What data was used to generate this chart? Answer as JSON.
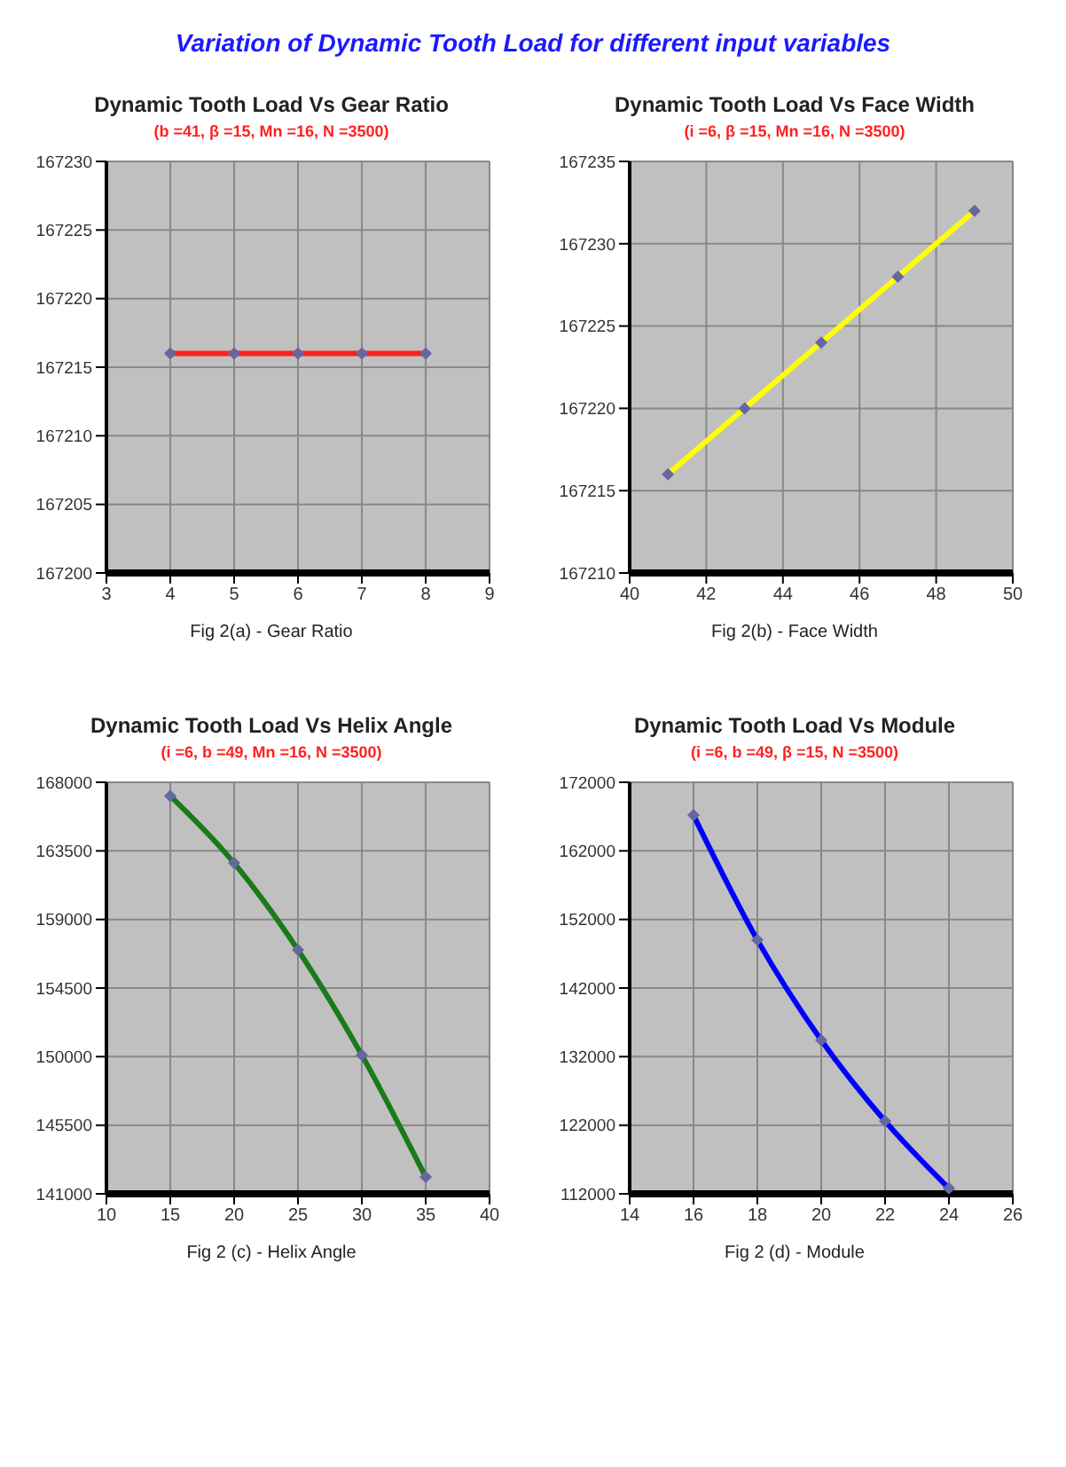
{
  "chart_data": [
    {
      "type": "other",
      "title": "Variation of Dynamic Tooth Load for different input variables"
    },
    {
      "type": "line",
      "title": "Dynamic Tooth Load Vs Gear Ratio",
      "subtitle": "(b =41, β =15, Mn =16, N =3500)",
      "xlabel": "Fig 2(a) - Gear Ratio",
      "x": [
        4,
        5,
        6,
        7,
        8
      ],
      "series": [
        {
          "color": "#ff2020",
          "values": [
            167216,
            167216,
            167216,
            167216,
            167216
          ]
        }
      ],
      "xlim": [
        3,
        9
      ],
      "xticks": [
        3,
        4,
        5,
        6,
        7,
        8,
        9
      ],
      "ylim": [
        167200,
        167230
      ],
      "yticks": [
        167200,
        167205,
        167210,
        167215,
        167220,
        167225,
        167230
      ],
      "grid": true,
      "marker": "diamond",
      "line_style": "solid"
    },
    {
      "type": "line",
      "title": "Dynamic Tooth Load Vs Face Width",
      "subtitle": "(i =6, β =15, Mn =16, N =3500)",
      "xlabel": "Fig 2(b) - Face Width",
      "x": [
        41,
        43,
        45,
        47,
        49
      ],
      "series": [
        {
          "color": "#ffff00",
          "values": [
            167216,
            167220,
            167224,
            167228,
            167232
          ]
        }
      ],
      "xlim": [
        40,
        50
      ],
      "xticks": [
        40,
        42,
        44,
        46,
        48,
        50
      ],
      "ylim": [
        167210,
        167235
      ],
      "yticks": [
        167210,
        167215,
        167220,
        167225,
        167230,
        167235
      ],
      "grid": true,
      "marker": "diamond",
      "line_style": "solid"
    },
    {
      "type": "line",
      "title": "Dynamic Tooth Load Vs Helix Angle",
      "subtitle": "(i =6, b =49, Mn =16, N =3500)",
      "xlabel": "Fig 2 (c) - Helix Angle",
      "x": [
        15,
        20,
        25,
        30,
        35
      ],
      "series": [
        {
          "color": "#1a7a1a",
          "values": [
            167100,
            162700,
            157000,
            150100,
            142100
          ]
        }
      ],
      "xlim": [
        10,
        40
      ],
      "xticks": [
        10,
        15,
        20,
        25,
        30,
        35,
        40
      ],
      "ylim": [
        141000,
        168000
      ],
      "yticks": [
        141000,
        145500,
        150000,
        154500,
        159000,
        163500,
        168000
      ],
      "grid": true,
      "marker": "diamond",
      "line_style": "solid"
    },
    {
      "type": "line",
      "title": "Dynamic Tooth Load Vs Module",
      "subtitle": "(i =6, b =49, β =15, N =3500)",
      "xlabel": "Fig 2 (d) - Module",
      "x": [
        16,
        18,
        20,
        22,
        24
      ],
      "series": [
        {
          "color": "#0000ff",
          "values": [
            167200,
            149000,
            134400,
            122600,
            112800
          ]
        }
      ],
      "xlim": [
        14,
        26
      ],
      "xticks": [
        14,
        16,
        18,
        20,
        22,
        24,
        26
      ],
      "ylim": [
        112000,
        172000
      ],
      "yticks": [
        112000,
        122000,
        132000,
        142000,
        152000,
        162000,
        172000
      ],
      "grid": true,
      "marker": "diamond",
      "line_style": "solid"
    }
  ]
}
